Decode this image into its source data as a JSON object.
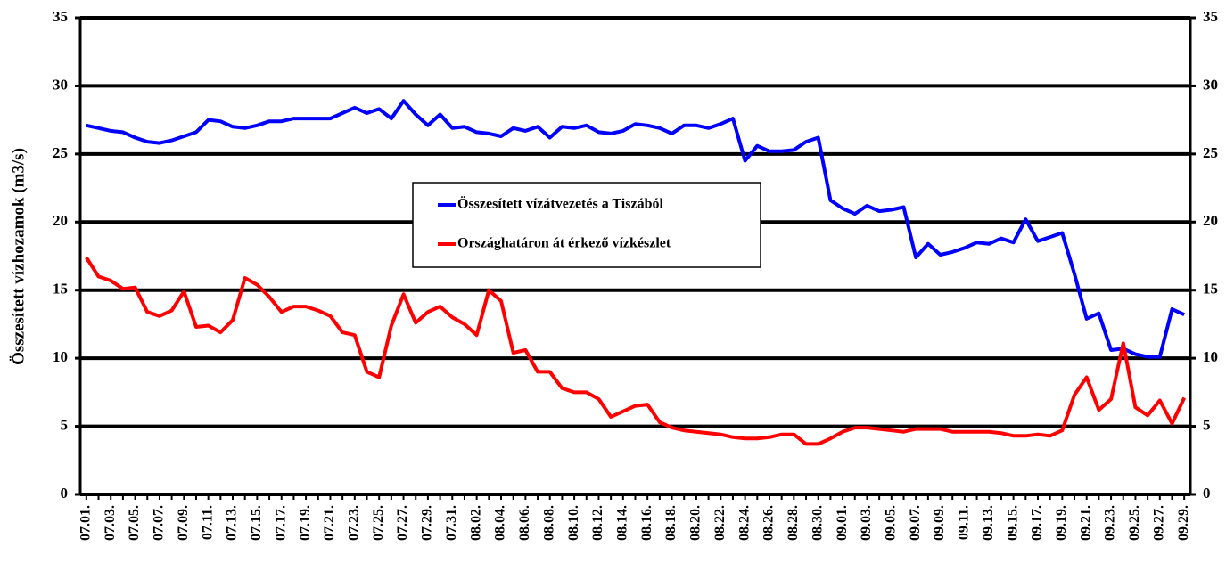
{
  "chart_data": {
    "type": "line",
    "ylabel": "Összesített vízhozamok (m3/s)",
    "categories": [
      "07.01.",
      null,
      "07.03.",
      null,
      "07.05.",
      null,
      "07.07.",
      null,
      "07.09.",
      null,
      "07.11.",
      null,
      "07.13.",
      null,
      "07.15.",
      null,
      "07.17.",
      null,
      "07.19.",
      null,
      "07.21.",
      null,
      "07.23.",
      null,
      "07.25.",
      null,
      "07.27.",
      null,
      "07.29.",
      null,
      "07.31.",
      null,
      "08.02.",
      null,
      "08.04.",
      null,
      "08.06.",
      null,
      "08.08.",
      null,
      "08.10.",
      null,
      "08.12.",
      null,
      "08.14.",
      null,
      "08.16.",
      null,
      "08.18.",
      null,
      "08.20.",
      null,
      "08.22.",
      null,
      "08.24.",
      null,
      "08.26.",
      null,
      "08.28.",
      null,
      "08.30.",
      null,
      "09.01.",
      null,
      "09.03.",
      null,
      "09.05.",
      null,
      "09.07.",
      null,
      "09.09.",
      null,
      "09.11.",
      null,
      "09.13.",
      null,
      "09.15.",
      null,
      "09.17.",
      null,
      "09.19.",
      null,
      "09.21.",
      null,
      "09.23.",
      null,
      "09.25.",
      null,
      "09.27.",
      null,
      "09.29."
    ],
    "series": [
      {
        "name": "Összesített vízátvezetés a Tiszából",
        "color": "#0000ff",
        "values": [
          27.1,
          26.9,
          26.7,
          26.6,
          26.2,
          25.9,
          25.8,
          26.0,
          26.3,
          26.6,
          27.5,
          27.4,
          27.0,
          26.9,
          27.1,
          27.4,
          27.4,
          27.6,
          27.6,
          27.6,
          27.6,
          28.0,
          28.4,
          28.0,
          28.3,
          27.6,
          28.9,
          27.9,
          27.1,
          27.9,
          26.9,
          27.0,
          26.6,
          26.5,
          26.3,
          26.9,
          26.7,
          27.0,
          26.2,
          27.0,
          26.9,
          27.1,
          26.6,
          26.5,
          26.7,
          27.2,
          27.1,
          26.9,
          26.5,
          27.1,
          27.1,
          26.9,
          27.2,
          27.6,
          24.5,
          25.6,
          25.2,
          25.2,
          25.3,
          25.9,
          26.2,
          21.6,
          21.0,
          20.6,
          21.2,
          20.8,
          20.9,
          21.1,
          17.4,
          18.4,
          17.6,
          17.8,
          18.1,
          18.5,
          18.4,
          18.8,
          18.5,
          20.2,
          18.6,
          18.9,
          19.2,
          16.2,
          12.9,
          13.3,
          10.6,
          10.7,
          10.3,
          10.1,
          10.1,
          13.6,
          13.2
        ]
      },
      {
        "name": "Országhatáron át érkező vízkészlet",
        "color": "#ff0000",
        "values": [
          17.4,
          16.0,
          15.7,
          15.1,
          15.2,
          13.4,
          13.1,
          13.5,
          14.9,
          12.3,
          12.4,
          11.9,
          12.8,
          15.9,
          15.4,
          14.5,
          13.4,
          13.8,
          13.8,
          13.5,
          13.1,
          11.9,
          11.7,
          9.0,
          8.6,
          12.4,
          14.7,
          12.6,
          13.4,
          13.8,
          13.0,
          12.5,
          11.7,
          15.0,
          14.2,
          10.4,
          10.6,
          9.0,
          9.0,
          7.8,
          7.5,
          7.5,
          7.0,
          5.7,
          6.1,
          6.5,
          6.6,
          5.3,
          4.9,
          4.7,
          4.6,
          4.5,
          4.4,
          4.2,
          4.1,
          4.1,
          4.2,
          4.4,
          4.4,
          3.7,
          3.7,
          4.1,
          4.6,
          4.9,
          4.9,
          4.8,
          4.7,
          4.6,
          4.8,
          4.8,
          4.8,
          4.6,
          4.6,
          4.6,
          4.6,
          4.5,
          4.3,
          4.3,
          4.4,
          4.3,
          4.7,
          7.3,
          8.6,
          6.2,
          7.0,
          11.1,
          6.4,
          5.8,
          6.9,
          5.2,
          7.1
        ]
      }
    ],
    "ylim": [
      0,
      35
    ],
    "yticks": [
      0,
      5,
      10,
      15,
      20,
      25,
      30,
      35
    ],
    "y2lim": [
      0,
      35
    ],
    "y2ticks": [
      0,
      5,
      10,
      15,
      20,
      25,
      30,
      35
    ],
    "grid": true,
    "legend": "center"
  }
}
